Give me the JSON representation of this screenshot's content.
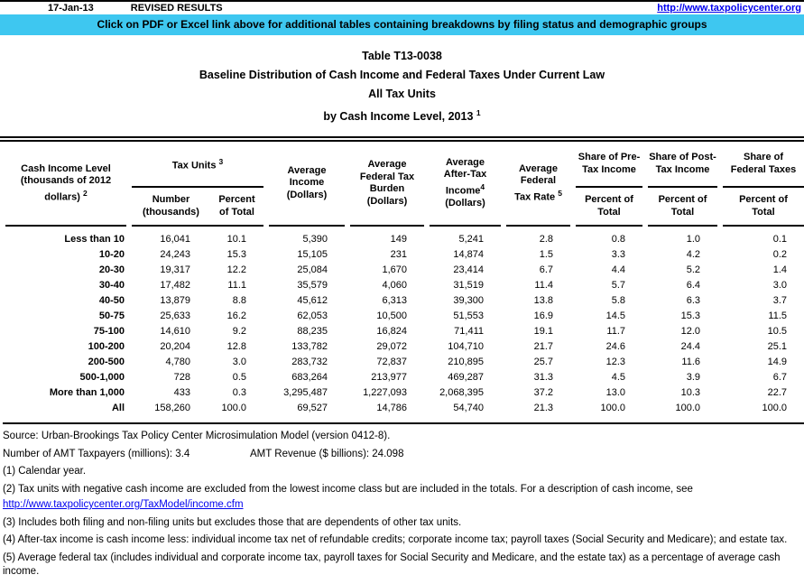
{
  "header": {
    "date": "17-Jan-13",
    "revised": "REVISED RESULTS",
    "url": "http://www.taxpolicycenter.org",
    "banner": "Click on PDF or Excel link above for additional tables containing breakdowns by filing status and demographic groups"
  },
  "title": {
    "line1": "Table T13-0038",
    "line2": "Baseline Distribution of Cash Income and Federal Taxes Under Current Law",
    "line3": "All Tax Units",
    "line4": "by Cash Income Level, 2013",
    "line4_sup": "1"
  },
  "accent_colors": {
    "banner_cyan": "#3EC7F0",
    "link_blue": "#0000EE"
  },
  "table": {
    "headers": {
      "cash_income_level": "Cash Income Level\n(thousands of 2012\ndollars)",
      "cash_income_level_sup": "2",
      "tax_units": "Tax Units",
      "tax_units_sup": "3",
      "number_thousands": "Number\n(thousands)",
      "percent_of_total_sub": "Percent\nof Total",
      "avg_income": "Average\nIncome\n(Dollars)",
      "avg_federal_tax_burden": "Average\nFederal Tax\nBurden\n(Dollars)",
      "avg_after_tax_income": "Average\nAfter-Tax\nIncome",
      "avg_after_tax_income_sup": "4",
      "avg_after_tax_income_rest": "\n(Dollars)",
      "avg_federal_tax_rate": "Average\nFederal\nTax Rate",
      "avg_federal_tax_rate_sup": "5",
      "share_pre_tax": "Share of Pre-\nTax Income",
      "share_post_tax": "Share of Post-\nTax Income",
      "share_federal_taxes": "Share of\nFederal Taxes",
      "percent_of_total": "Percent of\nTotal"
    },
    "rows": [
      [
        "Less than 10",
        "16,041",
        "10.1",
        "5,390",
        "149",
        "5,241",
        "2.8",
        "0.8",
        "1.0",
        "0.1"
      ],
      [
        "10-20",
        "24,243",
        "15.3",
        "15,105",
        "231",
        "14,874",
        "1.5",
        "3.3",
        "4.2",
        "0.2"
      ],
      [
        "20-30",
        "19,317",
        "12.2",
        "25,084",
        "1,670",
        "23,414",
        "6.7",
        "4.4",
        "5.2",
        "1.4"
      ],
      [
        "30-40",
        "17,482",
        "11.1",
        "35,579",
        "4,060",
        "31,519",
        "11.4",
        "5.7",
        "6.4",
        "3.0"
      ],
      [
        "40-50",
        "13,879",
        "8.8",
        "45,612",
        "6,313",
        "39,300",
        "13.8",
        "5.8",
        "6.3",
        "3.7"
      ],
      [
        "50-75",
        "25,633",
        "16.2",
        "62,053",
        "10,500",
        "51,553",
        "16.9",
        "14.5",
        "15.3",
        "11.5"
      ],
      [
        "75-100",
        "14,610",
        "9.2",
        "88,235",
        "16,824",
        "71,411",
        "19.1",
        "11.7",
        "12.0",
        "10.5"
      ],
      [
        "100-200",
        "20,204",
        "12.8",
        "133,782",
        "29,072",
        "104,710",
        "21.7",
        "24.6",
        "24.4",
        "25.1"
      ],
      [
        "200-500",
        "4,780",
        "3.0",
        "283,732",
        "72,837",
        "210,895",
        "25.7",
        "12.3",
        "11.6",
        "14.9"
      ],
      [
        "500-1,000",
        "728",
        "0.5",
        "683,264",
        "213,977",
        "469,287",
        "31.3",
        "4.5",
        "3.9",
        "6.7"
      ],
      [
        "More than 1,000",
        "433",
        "0.3",
        "3,295,487",
        "1,227,093",
        "2,068,395",
        "37.2",
        "13.0",
        "10.3",
        "22.7"
      ],
      [
        "All",
        "158,260",
        "100.0",
        "69,527",
        "14,786",
        "54,740",
        "21.3",
        "100.0",
        "100.0",
        "100.0"
      ]
    ]
  },
  "footer": {
    "source": "Source: Urban-Brookings Tax Policy Center Microsimulation Model (version 0412-8).",
    "amt_taxpayers": "Number of AMT Taxpayers (millions): 3.4",
    "amt_revenue": "AMT Revenue ($ billions): 24.098",
    "note1": "(1) Calendar year.",
    "note2": "(2) Tax units with negative cash income are excluded from the lowest income class but are included in the totals. For a description of cash income, see",
    "note2_link": "http://www.taxpolicycenter.org/TaxModel/income.cfm",
    "note3": "(3) Includes both filing and non-filing units but excludes those that are dependents of other tax units.",
    "note4": "(4) After-tax income is cash income less: individual income tax net of refundable credits; corporate income tax; payroll taxes (Social Security and Medicare); and estate tax.",
    "note5": "(5) Average federal tax (includes individual and corporate income tax, payroll taxes for Social Security and Medicare, and the estate tax) as a percentage of average cash income."
  }
}
